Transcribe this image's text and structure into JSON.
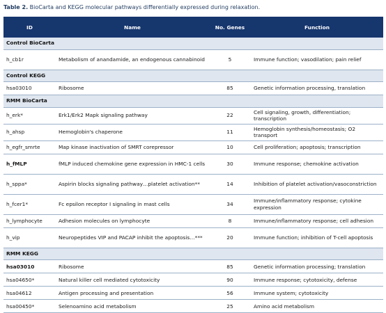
{
  "caption": {
    "label": "Table 2.",
    "text": "BioCarta and KEGG molecular pathways differentially expressed during relaxation."
  },
  "columns": [
    "ID",
    "Name",
    "No. Genes",
    "Function"
  ],
  "sections": [
    {
      "title": "Control BioCarta",
      "rows": [
        {
          "id": "h_cb1r",
          "name": "Metabolism of anandamide, an endogenous cannabinoid",
          "genes": "5",
          "function": "Immune function; vasodilation; pain relief"
        }
      ]
    },
    {
      "title": "Control KEGG",
      "rows": [
        {
          "id": "hsa03010",
          "name": "Ribosome",
          "genes": "85",
          "function": "Genetic information processing, translation"
        }
      ]
    },
    {
      "title": "RMM BioCarta",
      "rows": [
        {
          "id": "h_erk*",
          "name": "Erk1/Erk2 Mapk signaling pathway",
          "genes": "22",
          "function": "Cell signaling, growth, differentiation; transcription"
        },
        {
          "id": "h_ahsp",
          "name": "Hemoglobin's chaperone",
          "genes": "11",
          "function": "Hemoglobin synthesis/homeostasis; O2 transport"
        },
        {
          "id": "h_egfr_smrte",
          "name": "Map kinase inactivation of SMRT corepressor",
          "genes": "10",
          "function": "Cell proliferation; apoptosis; transcription"
        },
        {
          "id": "h_fMLP",
          "name": "fMLP induced chemokine gene expression in HMC-1 cells",
          "genes": "30",
          "function": "Immune response; chemokine activation",
          "bold": true
        },
        {
          "id": "h_sppa*",
          "name": "Aspirin blocks signaling pathway…platelet activation**",
          "genes": "14",
          "function": "Inhibition of platelet activation/vasoconstriction"
        },
        {
          "id": "h_fcer1*",
          "name": "Fc epsilon receptor I signaling in mast cells",
          "genes": "34",
          "function": "Immune/inflammatory response; cytokine expression"
        },
        {
          "id": "h_lymphocyte",
          "name": "Adhesion molecules on lymphocyte",
          "genes": "8",
          "function": "Immune/inflammatory response; cell adhesion"
        },
        {
          "id": "h_vip",
          "name": "Neuropeptides VIP and PACAP inhibit the apoptosis…***",
          "genes": "20",
          "function": "Immune function; inhibition of T-cell apoptosis"
        }
      ]
    },
    {
      "title": "RMM KEGG",
      "rows": [
        {
          "id": "hsa03010",
          "name": "Ribosome",
          "genes": "85",
          "function": "Genetic information processing; translation",
          "bold": true
        },
        {
          "id": "hsa04650*",
          "name": "Natural killer cell mediated cytotoxicity",
          "genes": "90",
          "function": "Immune response; cytotoxicity, defense"
        },
        {
          "id": "hsa04612",
          "name": "Antigen processing and presentation",
          "genes": "56",
          "function": "Immune system; cytotoxicity"
        },
        {
          "id": "hsa00450*",
          "name": "Selenoamino acid metabolism",
          "genes": "25",
          "function": "Amino acid metabolism"
        }
      ]
    }
  ]
}
